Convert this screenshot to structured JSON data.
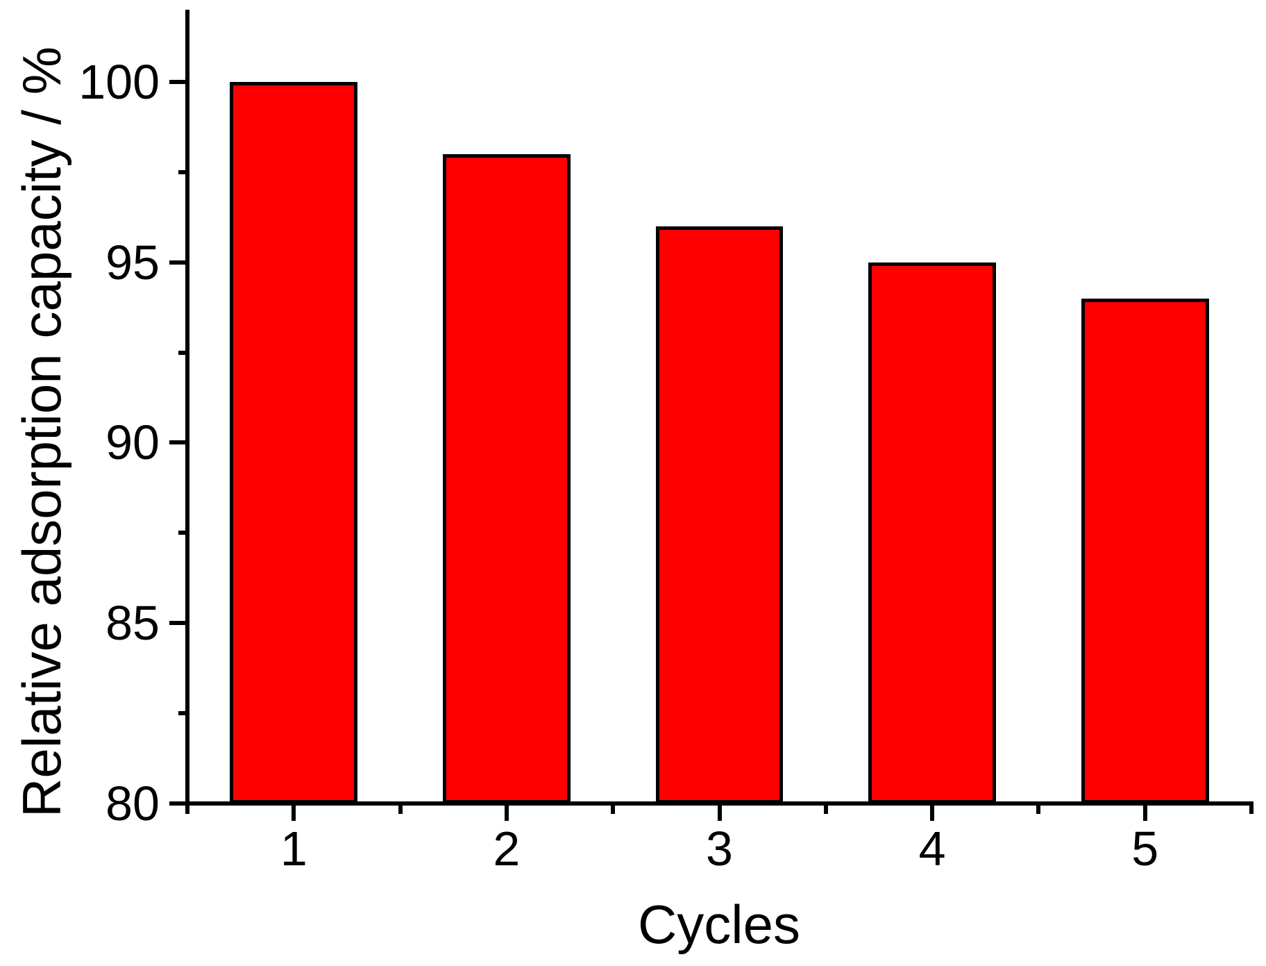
{
  "chart_data": {
    "type": "bar",
    "title": "",
    "xlabel": "Cycles",
    "ylabel": "Relative adsorption capacity / %",
    "categories": [
      "1",
      "2",
      "3",
      "4",
      "5"
    ],
    "values": [
      100,
      98,
      96,
      95,
      94
    ],
    "series": [
      {
        "name": "Relative adsorption capacity",
        "values": [
          100,
          98,
          96,
          95,
          94
        ]
      }
    ],
    "ylim": [
      80,
      102
    ],
    "xlim": [
      0.5,
      5.5
    ],
    "y_major_ticks": [
      80,
      85,
      90,
      95,
      100
    ],
    "y_minor_ticks": [
      82.5,
      87.5,
      92.5,
      97.5
    ],
    "x_major_ticks": [
      1,
      2,
      3,
      4,
      5
    ],
    "x_minor_ticks": [
      0.5,
      1.5,
      2.5,
      3.5,
      4.5,
      5.5
    ],
    "bar_width_ratio": 0.6,
    "grid": false,
    "legend_position": "none",
    "colors": {
      "bar_fill": "#FF0000",
      "bar_border": "#000000",
      "axis": "#000000",
      "text": "#000000",
      "background": "#FFFFFF"
    }
  }
}
